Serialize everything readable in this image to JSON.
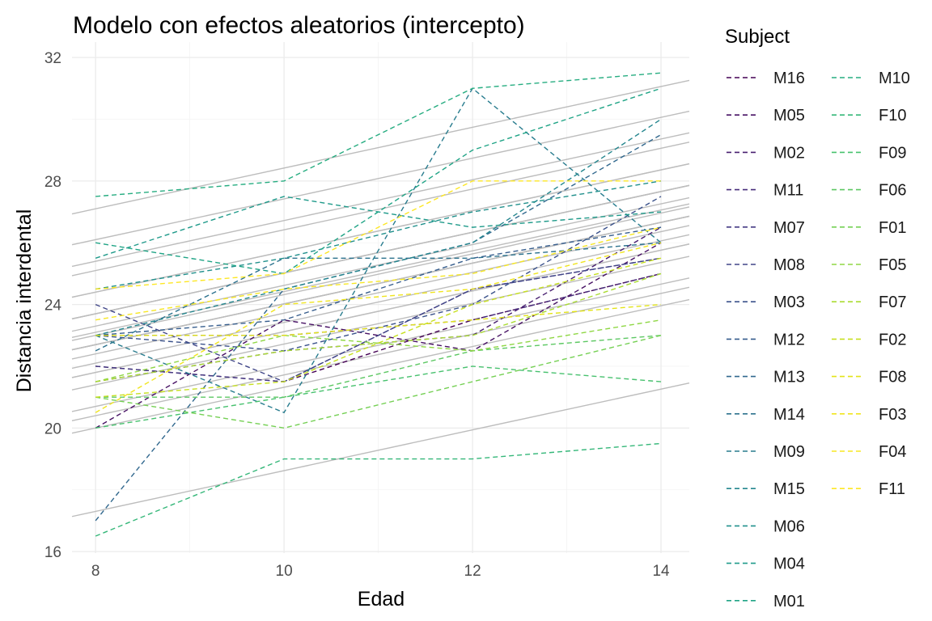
{
  "chart_data": {
    "type": "line",
    "title": "Modelo con efectos aleatorios (intercepto)",
    "xlabel": "Edad",
    "ylabel": "Distancia interdental",
    "xlim": [
      7.75,
      14.3
    ],
    "ylim": [
      15.95,
      32.5
    ],
    "xticks": [
      8,
      10,
      12,
      14
    ],
    "yticks": [
      16,
      20,
      24,
      28,
      32
    ],
    "grid": true,
    "legend_title": "Subject",
    "legend_position": "right",
    "fixed_slope": 0.66,
    "series": [
      {
        "name": "M16",
        "color": "#440154",
        "x": [
          8,
          10,
          12,
          14
        ],
        "y": [
          22,
          21.5,
          23.5,
          25
        ]
      },
      {
        "name": "M05",
        "color": "#471164",
        "x": [
          8,
          10,
          12,
          14
        ],
        "y": [
          20,
          23.5,
          22.5,
          26
        ]
      },
      {
        "name": "M02",
        "color": "#481F70",
        "x": [
          8,
          10,
          12,
          14
        ],
        "y": [
          21.5,
          22.5,
          23,
          26.5
        ]
      },
      {
        "name": "M11",
        "color": "#472D7B",
        "x": [
          8,
          10,
          12,
          14
        ],
        "y": [
          23,
          23,
          23.5,
          25
        ]
      },
      {
        "name": "M07",
        "color": "#443A83",
        "x": [
          8,
          10,
          12,
          14
        ],
        "y": [
          22,
          21.5,
          24.5,
          25.5
        ]
      },
      {
        "name": "M08",
        "color": "#404688",
        "x": [
          8,
          10,
          12,
          14
        ],
        "y": [
          24,
          21.5,
          24.5,
          25.5
        ]
      },
      {
        "name": "M03",
        "color": "#3B528B",
        "x": [
          8,
          10,
          12,
          14
        ],
        "y": [
          23,
          22.5,
          24,
          27.5
        ]
      },
      {
        "name": "M12",
        "color": "#365D8D",
        "x": [
          8,
          10,
          12,
          14
        ],
        "y": [
          23,
          23.5,
          25.5,
          26.5
        ]
      },
      {
        "name": "M13",
        "color": "#31688E",
        "x": [
          8,
          10,
          12,
          14
        ],
        "y": [
          17,
          24.5,
          26,
          29.5
        ]
      },
      {
        "name": "M14",
        "color": "#2C728E",
        "x": [
          8,
          10,
          12,
          14
        ],
        "y": [
          22.5,
          25.5,
          25.5,
          26
        ]
      },
      {
        "name": "M09",
        "color": "#287C8E",
        "x": [
          8,
          10,
          12,
          14
        ],
        "y": [
          23,
          20.5,
          31,
          26
        ]
      },
      {
        "name": "M15",
        "color": "#24868E",
        "x": [
          8,
          10,
          12,
          14
        ],
        "y": [
          23,
          24.5,
          26,
          30
        ]
      },
      {
        "name": "M06",
        "color": "#21908C",
        "x": [
          8,
          10,
          12,
          14
        ],
        "y": [
          24.5,
          25.5,
          27,
          28
        ]
      },
      {
        "name": "M04",
        "color": "#1F9A8A",
        "x": [
          8,
          10,
          12,
          14
        ],
        "y": [
          25.5,
          27.5,
          26.5,
          27
        ]
      },
      {
        "name": "M01",
        "color": "#20A486",
        "x": [
          8,
          10,
          12,
          14
        ],
        "y": [
          26,
          25,
          29,
          31
        ]
      },
      {
        "name": "M10",
        "color": "#27AD81",
        "x": [
          8,
          10,
          12,
          14
        ],
        "y": [
          27.5,
          28,
          31,
          31.5
        ]
      },
      {
        "name": "F10",
        "color": "#35B779",
        "x": [
          8,
          10,
          12,
          14
        ],
        "y": [
          16.5,
          19,
          19,
          19.5
        ]
      },
      {
        "name": "F09",
        "color": "#47C16E",
        "x": [
          8,
          10,
          12,
          14
        ],
        "y": [
          20,
          21,
          22,
          21.5
        ]
      },
      {
        "name": "F06",
        "color": "#5DC863",
        "x": [
          8,
          10,
          12,
          14
        ],
        "y": [
          21,
          21,
          22.5,
          23
        ]
      },
      {
        "name": "F01",
        "color": "#75D054",
        "x": [
          8,
          10,
          12,
          14
        ],
        "y": [
          21,
          20,
          21.5,
          23
        ]
      },
      {
        "name": "F05",
        "color": "#8FD744",
        "x": [
          8,
          10,
          12,
          14
        ],
        "y": [
          21.5,
          23,
          22.5,
          23.5
        ]
      },
      {
        "name": "F07",
        "color": "#AADC32",
        "x": [
          8,
          10,
          12,
          14
        ],
        "y": [
          21.5,
          22.5,
          23,
          25
        ]
      },
      {
        "name": "F02",
        "color": "#C7E020",
        "x": [
          8,
          10,
          12,
          14
        ],
        "y": [
          21,
          21.5,
          24,
          25.5
        ]
      },
      {
        "name": "F08",
        "color": "#E3E418",
        "x": [
          8,
          10,
          12,
          14
        ],
        "y": [
          23,
          23,
          23.5,
          24
        ]
      },
      {
        "name": "F03",
        "color": "#F0E51F",
        "x": [
          8,
          10,
          12,
          14
        ],
        "y": [
          20.5,
          24,
          24.5,
          26
        ]
      },
      {
        "name": "F04",
        "color": "#F7E723",
        "x": [
          8,
          10,
          12,
          14
        ],
        "y": [
          23.5,
          24.5,
          25,
          26.5
        ]
      },
      {
        "name": "F11",
        "color": "#FDE725",
        "x": [
          8,
          10,
          12,
          14
        ],
        "y": [
          24.5,
          25,
          28,
          28
        ]
      }
    ],
    "fitted_intercepts_at_8": [
      22.7,
      22.7,
      22.7,
      23.0,
      22.7,
      22.7,
      23.3,
      23.7,
      23.7,
      23.7,
      23.7,
      24.4,
      25.1,
      25.4,
      26.1,
      27.1,
      17.3,
      20.0,
      20.7,
      20.4,
      21.4,
      21.8,
      21.8,
      22.4,
      22.1,
      23.1,
      24.4
    ]
  }
}
